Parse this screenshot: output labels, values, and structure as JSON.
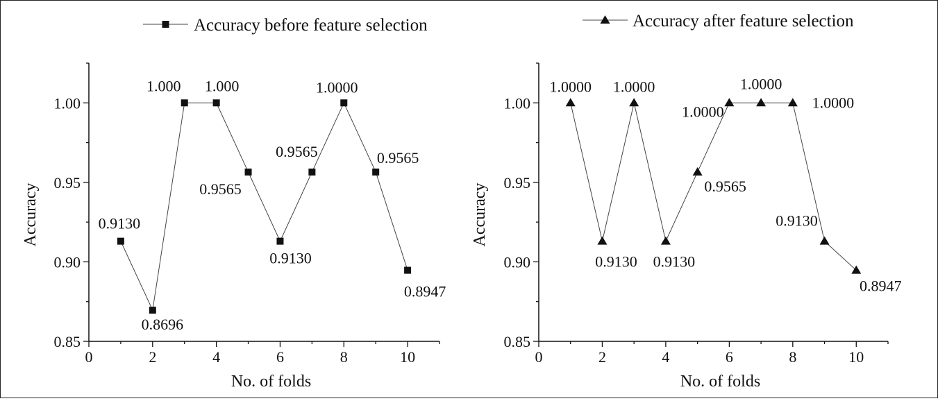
{
  "chart_data": [
    {
      "type": "line",
      "legend": "Accuracy before feature selection",
      "legend_placement": "top",
      "marker": "square",
      "xlabel": "No. of folds",
      "ylabel": "Accuracy",
      "xlim": [
        0,
        11
      ],
      "ylim": [
        0.85,
        1.025
      ],
      "xticks": [
        "0",
        "2",
        "4",
        "6",
        "8",
        "10"
      ],
      "yticks": [
        "0.85",
        "0.90",
        "0.95",
        "1.00"
      ],
      "grid": false,
      "x": [
        1,
        2,
        3,
        4,
        5,
        6,
        7,
        8,
        9,
        10
      ],
      "y": [
        0.913,
        0.8696,
        1.0,
        1.0,
        0.9565,
        0.913,
        0.9565,
        1.0,
        0.9565,
        0.8947
      ],
      "labels": [
        "0.9130",
        "0.8696",
        "1.000",
        "1.000",
        "0.9565",
        "0.9130",
        "0.9565",
        "1.0000",
        "0.9565",
        "0.8947"
      ]
    },
    {
      "type": "line",
      "legend": "Accuracy after feature selection",
      "legend_placement": "top",
      "marker": "triangle",
      "xlabel": "No. of folds",
      "ylabel": "Accuracy",
      "xlim": [
        0,
        11
      ],
      "ylim": [
        0.85,
        1.025
      ],
      "xticks": [
        "0",
        "2",
        "4",
        "6",
        "8",
        "10"
      ],
      "yticks": [
        "0.85",
        "0.90",
        "0.95",
        "1.00"
      ],
      "grid": false,
      "x": [
        1,
        2,
        3,
        4,
        5,
        6,
        7,
        8,
        9,
        10
      ],
      "y": [
        1.0,
        0.913,
        1.0,
        0.913,
        0.9565,
        1.0,
        1.0,
        1.0,
        0.913,
        0.8947
      ],
      "labels": [
        "1.0000",
        "0.9130",
        "1.0000",
        "0.9130",
        "0.9565",
        "1.0000",
        "1.0000",
        "1.0000",
        "0.9130",
        "0.8947"
      ]
    }
  ]
}
